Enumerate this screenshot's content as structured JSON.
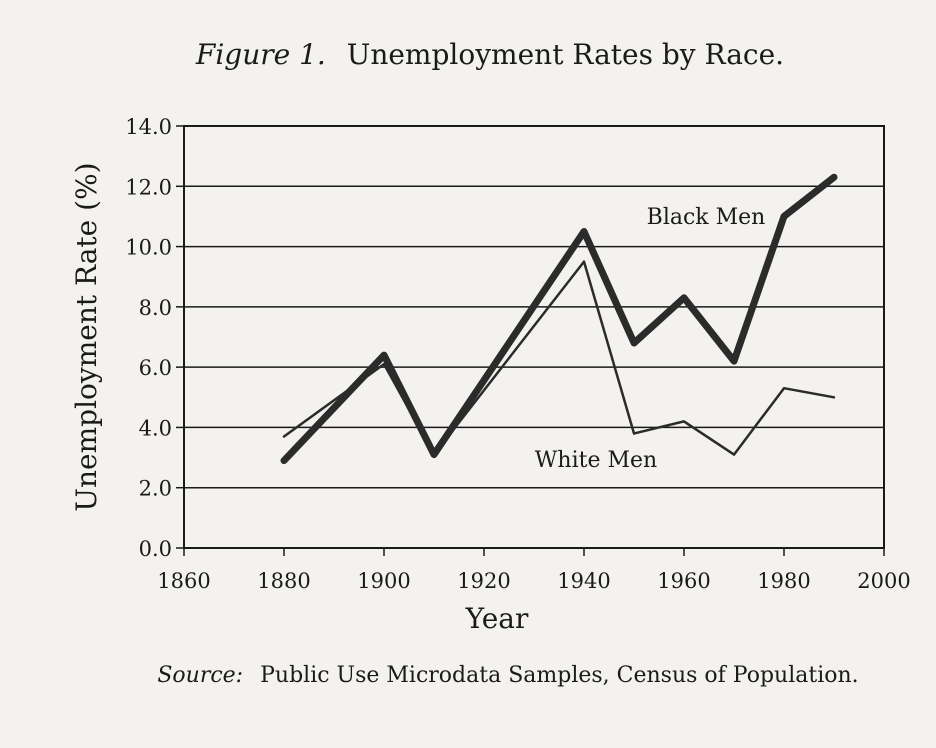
{
  "figure": {
    "figure_label": "Figure 1.",
    "title_text": "Unemployment Rates by Race.",
    "source_label": "Source:",
    "source_text": "Public Use Microdata Samples, Census of Population."
  },
  "chart_data": {
    "type": "line",
    "title": "Unemployment Rates by Race.",
    "xlabel": "Year",
    "ylabel": "Unemployment Rate (%)",
    "xlim": [
      1860,
      2000
    ],
    "ylim": [
      0,
      14
    ],
    "xticks": [
      1860,
      1880,
      1900,
      1920,
      1940,
      1960,
      1980,
      2000
    ],
    "yticks": [
      "0.0",
      "2.0",
      "4.0",
      "6.0",
      "8.0",
      "10.0",
      "12.0",
      "14.0"
    ],
    "grid": "horizontal",
    "series": [
      {
        "name": "Black Men",
        "color": "#2b2b2b",
        "x": [
          1880,
          1900,
          1910,
          1940,
          1950,
          1960,
          1970,
          1980,
          1990
        ],
        "y": [
          2.9,
          6.4,
          3.1,
          10.5,
          6.8,
          8.3,
          6.2,
          11.0,
          12.3
        ]
      },
      {
        "name": "White Men",
        "color": "#2b2b2b",
        "x": [
          1880,
          1900,
          1910,
          1940,
          1950,
          1960,
          1970,
          1980,
          1990
        ],
        "y": [
          3.7,
          6.1,
          3.1,
          9.5,
          3.8,
          4.2,
          3.1,
          5.3,
          5.0
        ]
      }
    ]
  }
}
